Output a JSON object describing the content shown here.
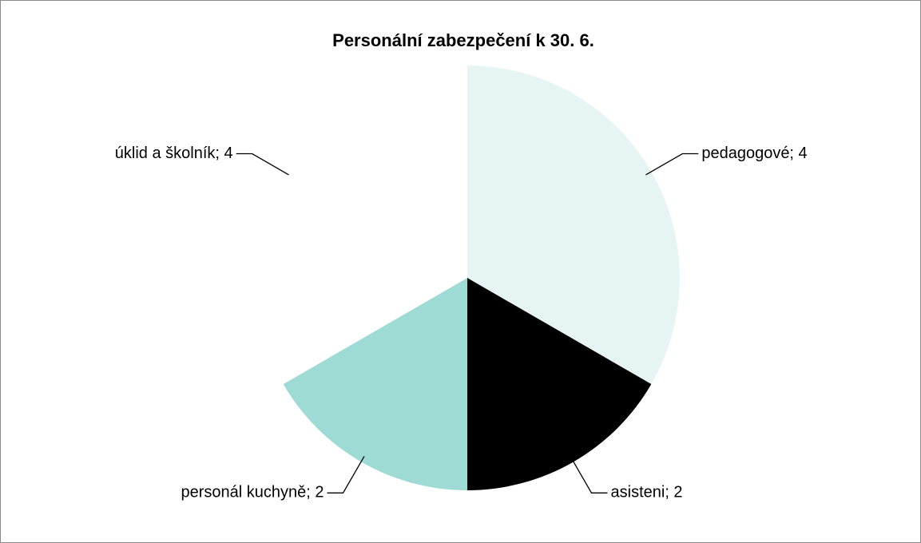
{
  "chart_data": {
    "type": "pie",
    "title": "Personální zabezpečení k 30. 6.",
    "labels": [
      "pedagogové; 4",
      "asisteni; 2",
      "personál kuchyně; 2",
      "úklid a školník; 4"
    ],
    "values": [
      4,
      2,
      2,
      4
    ],
    "colors": [
      "#e6f5f3",
      "#000000",
      "#9fdbd5",
      "#ffffff"
    ]
  }
}
